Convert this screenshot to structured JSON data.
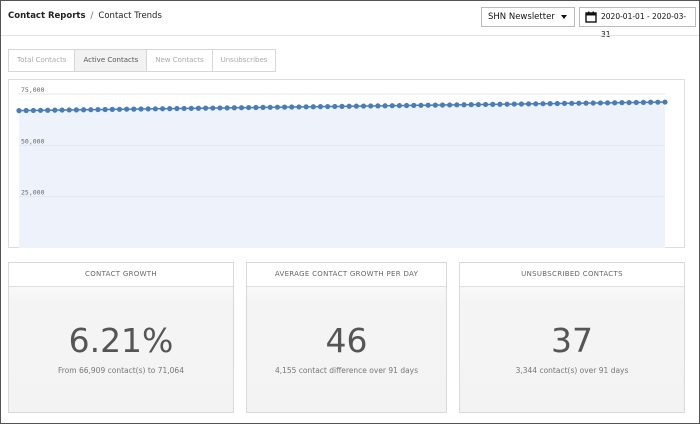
{
  "breadcrumb": {
    "root": "Contact Reports",
    "separator": "/",
    "current": "Contact Trends"
  },
  "filters": {
    "list_select": {
      "value": "SHN Newsletter",
      "icon": "caret-down-icon"
    },
    "date_range": {
      "value": "2020-01-01 - 2020-03-31",
      "icon": "calendar-icon"
    }
  },
  "tabs": [
    {
      "label": "Total Contacts",
      "active": false
    },
    {
      "label": "Active Contacts",
      "active": true
    },
    {
      "label": "New Contacts",
      "active": false
    },
    {
      "label": "Unsubscribes",
      "active": false
    }
  ],
  "chart_data": {
    "type": "area",
    "title": "",
    "xlabel": "",
    "ylabel": "",
    "ylim": [
      0,
      75000
    ],
    "yticks": [
      "75,000",
      "50,000",
      "25,000"
    ],
    "ytick_values": [
      75000,
      50000,
      25000
    ],
    "grid": true,
    "line_color": "#4a7cb8",
    "fill_color": "#eef3fb",
    "series": [
      {
        "points": 91,
        "start": 66909,
        "end": 71064
      }
    ]
  },
  "stats": [
    {
      "title": "CONTACT GROWTH",
      "value": "6.21%",
      "detail": "From 66,909 contact(s) to 71,064"
    },
    {
      "title": "AVERAGE CONTACT GROWTH PER DAY",
      "value": "46",
      "detail": "4,155 contact difference over 91 days"
    },
    {
      "title": "UNSUBSCRIBED CONTACTS",
      "value": "37",
      "detail": "3,344 contact(s) over 91 days"
    }
  ]
}
